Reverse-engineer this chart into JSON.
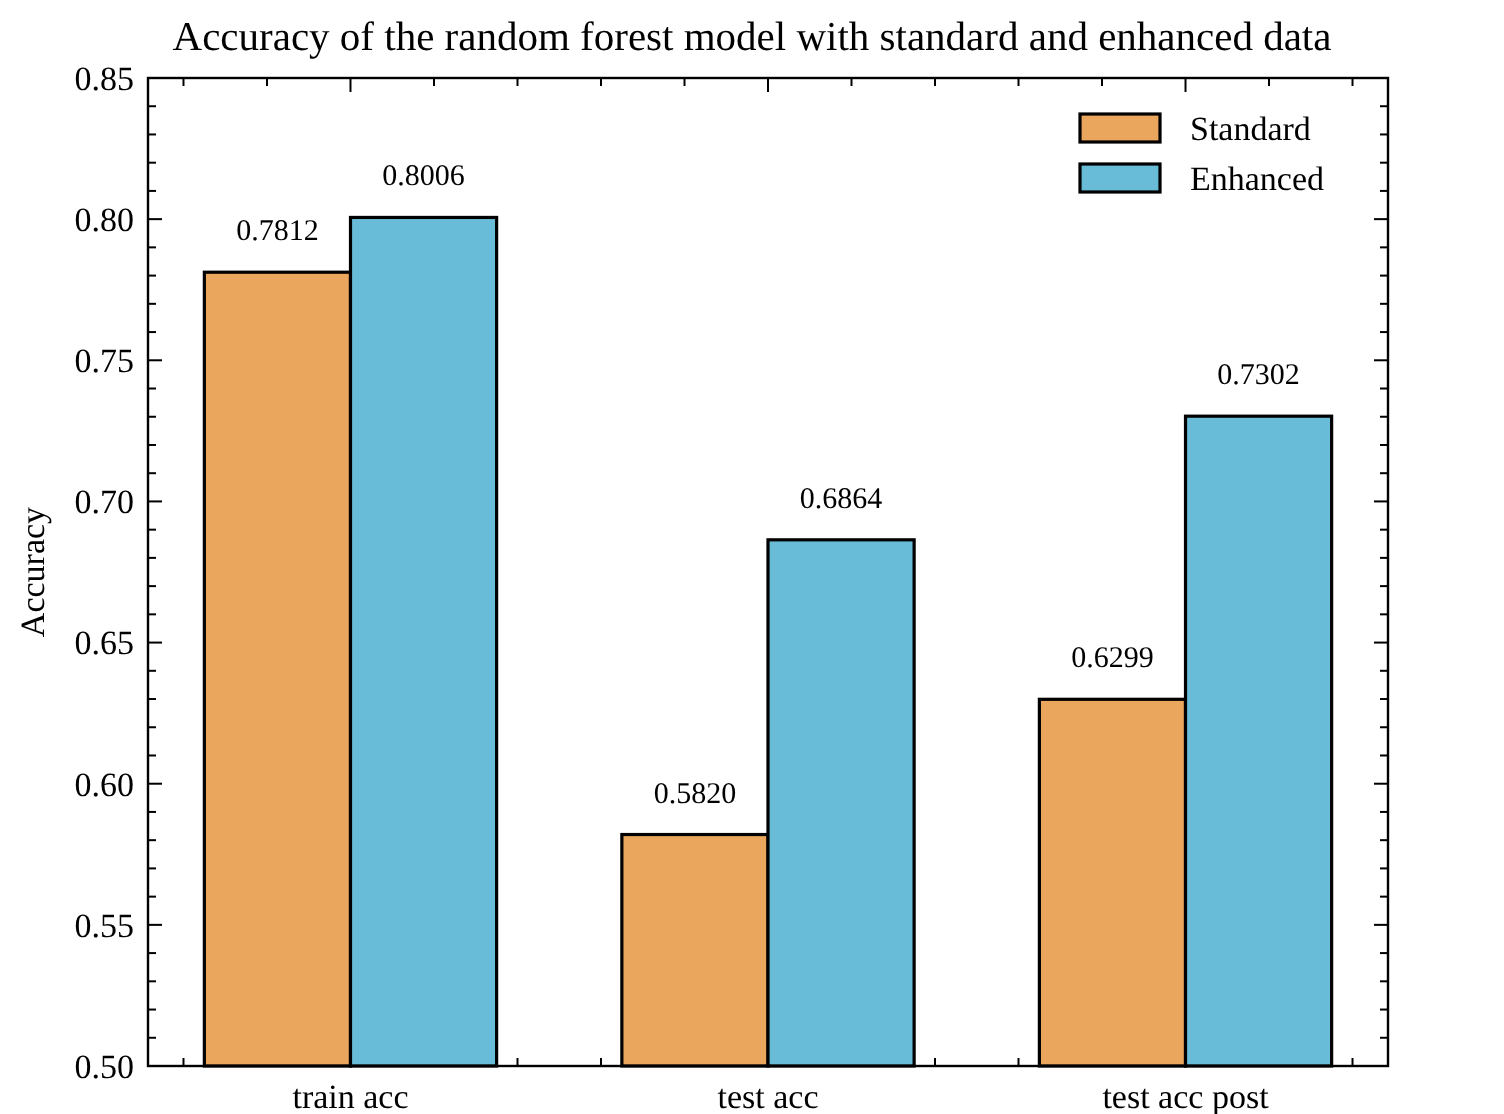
{
  "chart_data": {
    "type": "bar",
    "title": "Accuracy of the random forest model with standard and enhanced data",
    "ylabel": "Accuracy",
    "categories": [
      "train acc",
      "test acc",
      "test acc post"
    ],
    "series": [
      {
        "name": "Standard",
        "color": "#e9a65c",
        "values": [
          0.7812,
          0.582,
          0.6299
        ],
        "value_labels": [
          "0.7812",
          "0.5820",
          "0.6299"
        ]
      },
      {
        "name": "Enhanced",
        "color": "#68bcd8",
        "values": [
          0.8006,
          0.6864,
          0.7302
        ],
        "value_labels": [
          "0.8006",
          "0.6864",
          "0.7302"
        ]
      }
    ],
    "ylim": [
      0.5,
      0.85
    ],
    "yticks": [
      {
        "value": 0.5,
        "label": "0.50"
      },
      {
        "value": 0.51,
        "label": null
      },
      {
        "value": 0.52,
        "label": null
      },
      {
        "value": 0.53,
        "label": null
      },
      {
        "value": 0.54,
        "label": null
      },
      0.55,
      {
        "value": 0.56,
        "label": null
      },
      {
        "value": 0.57,
        "label": null
      },
      {
        "value": 0.58,
        "label": null
      },
      {
        "value": 0.59,
        "label": null
      },
      {
        "value": 0.6,
        "label": "0.60"
      },
      {
        "value": 0.61,
        "label": null
      },
      {
        "value": 0.62,
        "label": null
      },
      {
        "value": 0.63,
        "label": null
      },
      {
        "value": 0.64,
        "label": null
      },
      0.65,
      {
        "value": 0.66,
        "label": null
      },
      {
        "value": 0.67,
        "label": null
      },
      {
        "value": 0.68,
        "label": null
      },
      {
        "value": 0.69,
        "label": null
      },
      {
        "value": 0.7,
        "label": "0.70"
      },
      {
        "value": 0.71,
        "label": null
      },
      {
        "value": 0.72,
        "label": null
      },
      {
        "value": 0.73,
        "label": null
      },
      {
        "value": 0.74,
        "label": null
      },
      0.75,
      {
        "value": 0.76,
        "label": null
      },
      {
        "value": 0.77,
        "label": null
      },
      {
        "value": 0.78,
        "label": null
      },
      {
        "value": 0.79,
        "label": null
      },
      {
        "value": 0.8,
        "label": "0.80"
      },
      {
        "value": 0.81,
        "label": null
      },
      {
        "value": 0.82,
        "label": null
      },
      {
        "value": 0.83,
        "label": null
      },
      {
        "value": 0.84,
        "label": null
      },
      0.85
    ],
    "legend": "top right"
  }
}
